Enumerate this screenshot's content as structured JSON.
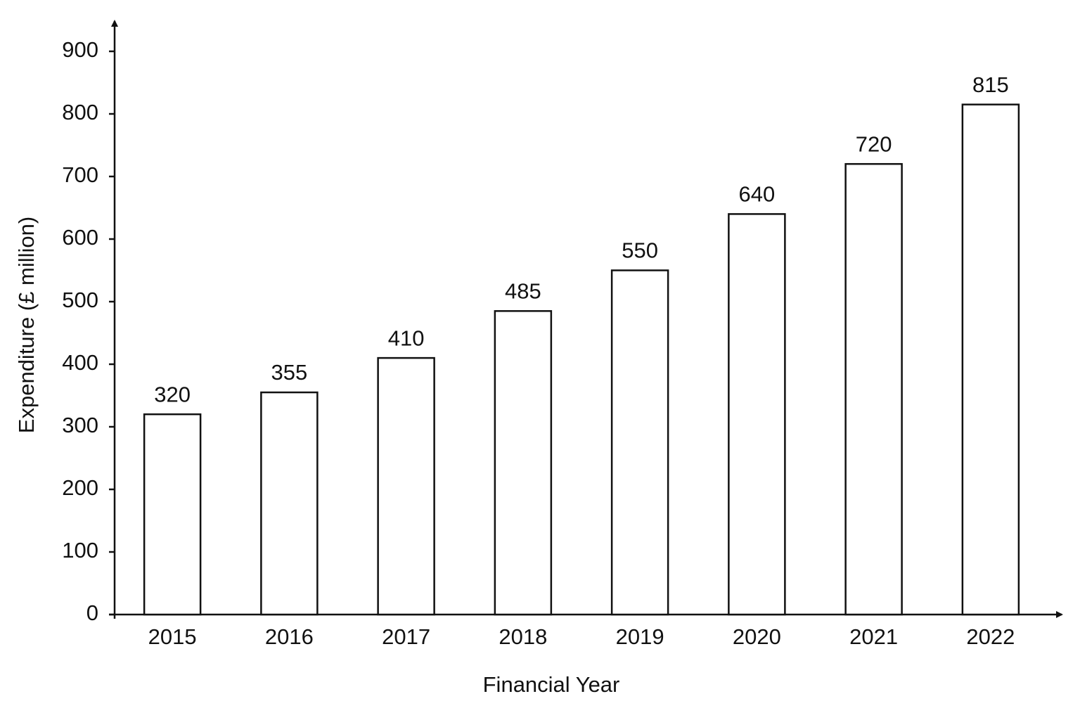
{
  "chart_data": {
    "type": "bar",
    "x_label": "Financial Year",
    "y_label": "Expenditure (£ million)",
    "categories": [
      "2015",
      "2016",
      "2017",
      "2018",
      "2019",
      "2020",
      "2021",
      "2022"
    ],
    "values": [
      320,
      355,
      410,
      485,
      550,
      640,
      720,
      815
    ],
    "color": "#ffffff",
    "ylim": [
      0,
      950
    ],
    "yticks": [
      0,
      100,
      200,
      300,
      400,
      500,
      600,
      700,
      800,
      900
    ],
    "grid": false,
    "value_labels_shown": true
  }
}
